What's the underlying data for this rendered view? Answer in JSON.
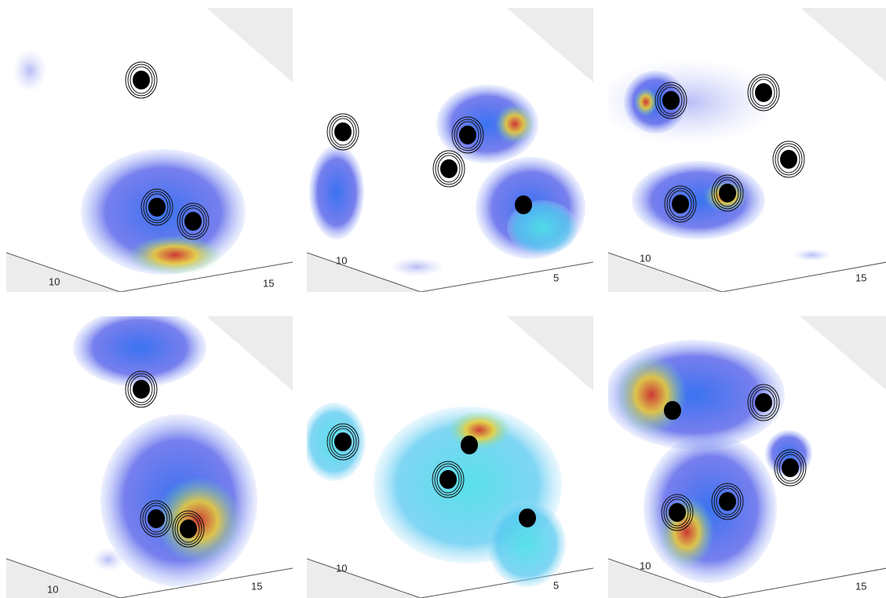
{
  "panels": [
    {
      "ticks": [
        "10",
        "15"
      ]
    },
    {
      "ticks": [
        "10",
        "5"
      ]
    },
    {
      "ticks": [
        "10",
        "15"
      ]
    },
    {
      "ticks": [
        "10",
        "15"
      ]
    },
    {
      "ticks": [
        "10",
        "5"
      ]
    },
    {
      "ticks": [
        "10",
        "15"
      ]
    }
  ]
}
